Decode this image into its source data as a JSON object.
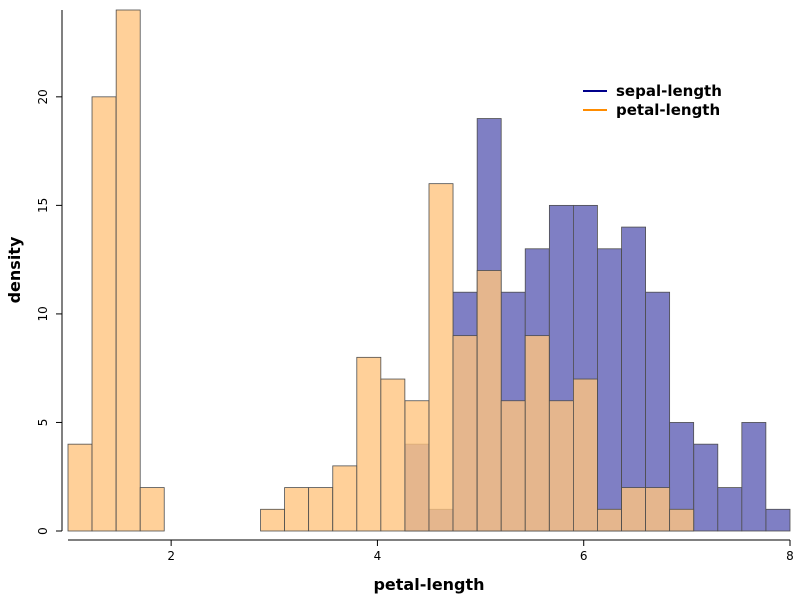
{
  "chart_data": {
    "type": "bar",
    "subtype": "overlapping-histogram",
    "title": "",
    "xlabel": "petal-length",
    "ylabel": "density",
    "xlim": [
      1,
      8
    ],
    "ylim": [
      0,
      24
    ],
    "x_ticks": [
      2,
      4,
      6,
      8
    ],
    "y_ticks": [
      0,
      5,
      10,
      15,
      20
    ],
    "grid": false,
    "legend_position": "top-right",
    "bin_width": 0.233,
    "series": [
      {
        "name": "sepal-length",
        "color": "#00008b",
        "fill": "#7f7fc4",
        "bins": [
          {
            "x0": 4.267,
            "count": 4
          },
          {
            "x0": 4.5,
            "count": 1
          },
          {
            "x0": 4.733,
            "count": 11
          },
          {
            "x0": 4.967,
            "count": 19
          },
          {
            "x0": 5.2,
            "count": 11
          },
          {
            "x0": 5.433,
            "count": 13
          },
          {
            "x0": 5.667,
            "count": 15
          },
          {
            "x0": 5.9,
            "count": 15
          },
          {
            "x0": 6.133,
            "count": 13
          },
          {
            "x0": 6.367,
            "count": 14
          },
          {
            "x0": 6.6,
            "count": 11
          },
          {
            "x0": 6.833,
            "count": 5
          },
          {
            "x0": 7.067,
            "count": 4
          },
          {
            "x0": 7.3,
            "count": 2
          },
          {
            "x0": 7.533,
            "count": 5
          },
          {
            "x0": 7.767,
            "count": 1
          }
        ]
      },
      {
        "name": "petal-length",
        "color": "#ff8c00",
        "fill": "#ffc47f",
        "bins": [
          {
            "x0": 1.0,
            "count": 4
          },
          {
            "x0": 1.233,
            "count": 20
          },
          {
            "x0": 1.467,
            "count": 24
          },
          {
            "x0": 1.7,
            "count": 2
          },
          {
            "x0": 1.933,
            "count": 0
          },
          {
            "x0": 2.167,
            "count": 0
          },
          {
            "x0": 2.4,
            "count": 0
          },
          {
            "x0": 2.633,
            "count": 0
          },
          {
            "x0": 2.867,
            "count": 1
          },
          {
            "x0": 3.1,
            "count": 2
          },
          {
            "x0": 3.333,
            "count": 2
          },
          {
            "x0": 3.567,
            "count": 3
          },
          {
            "x0": 3.8,
            "count": 8
          },
          {
            "x0": 4.033,
            "count": 7
          },
          {
            "x0": 4.267,
            "count": 6
          },
          {
            "x0": 4.5,
            "count": 16
          },
          {
            "x0": 4.733,
            "count": 9
          },
          {
            "x0": 4.967,
            "count": 12
          },
          {
            "x0": 5.2,
            "count": 6
          },
          {
            "x0": 5.433,
            "count": 9
          },
          {
            "x0": 5.667,
            "count": 6
          },
          {
            "x0": 5.9,
            "count": 7
          },
          {
            "x0": 6.133,
            "count": 1
          },
          {
            "x0": 6.367,
            "count": 2
          },
          {
            "x0": 6.6,
            "count": 2
          },
          {
            "x0": 6.833,
            "count": 1
          }
        ]
      }
    ]
  }
}
